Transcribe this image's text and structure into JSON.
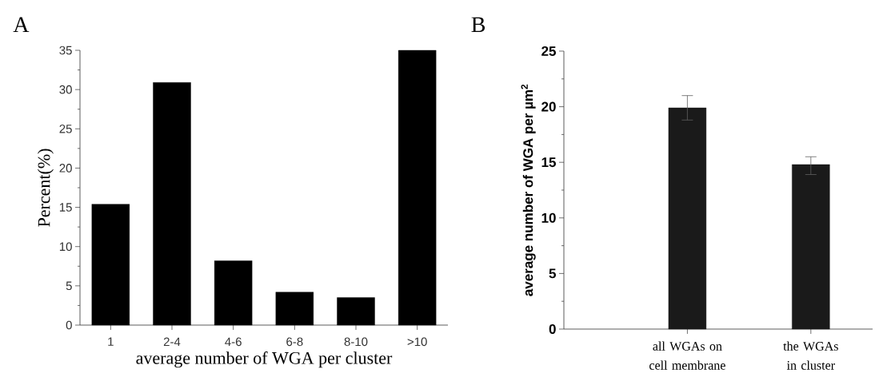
{
  "chart_data": [
    {
      "type": "bar",
      "title": "A",
      "xlabel": "average number of WGA per cluster",
      "ylabel": "Percent(%)",
      "categories": [
        "1",
        "2-4",
        "4-6",
        "6-8",
        "8-10",
        ">10"
      ],
      "values": [
        15.4,
        30.9,
        8.2,
        4.2,
        3.5,
        35
      ],
      "color": "#000000",
      "ylim": [
        0,
        35
      ],
      "yticks": [
        0,
        5,
        10,
        15,
        20,
        25,
        30,
        35
      ]
    },
    {
      "type": "bar",
      "title": "B",
      "ylabel": "average number of WGA per µm$^{2}$",
      "categories": [
        "all WGAs on cell membrane",
        "the WGAs in cluster"
      ],
      "values": [
        19.9,
        14.8
      ],
      "errors": [
        [
          18.8,
          21.0
        ],
        [
          13.9,
          15.5
        ]
      ],
      "color": "#1a1a1a",
      "ylim": [
        0,
        25
      ],
      "yticks": [
        0,
        5,
        10,
        15,
        20,
        25
      ]
    }
  ]
}
